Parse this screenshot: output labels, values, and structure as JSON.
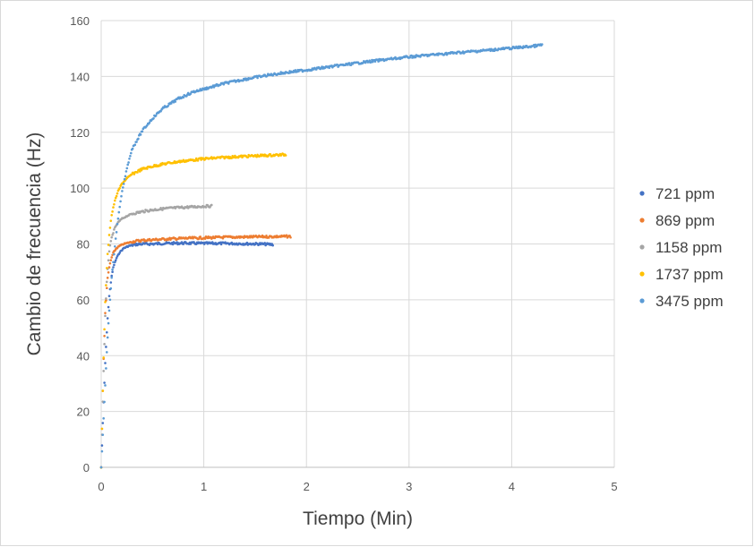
{
  "chart_data": {
    "type": "scatter",
    "title": "",
    "xlabel": "Tiempo (Min)",
    "ylabel": "Cambio de frecuencia (Hz)",
    "xlim": [
      0,
      5
    ],
    "ylim": [
      0,
      160
    ],
    "xticks": [
      0,
      1,
      2,
      3,
      4,
      5
    ],
    "yticks": [
      0,
      20,
      40,
      60,
      80,
      100,
      120,
      140,
      160
    ],
    "grid": true,
    "legend_position": "right",
    "series": [
      {
        "name": "721 ppm",
        "color": "#4472C4",
        "x": [
          0,
          0.02,
          0.04,
          0.06,
          0.08,
          0.1,
          0.12,
          0.15,
          0.18,
          0.22,
          0.27,
          0.33,
          0.4,
          0.5,
          0.6,
          0.8,
          1.0,
          1.2,
          1.4,
          1.55,
          1.68
        ],
        "y": [
          0,
          20,
          38,
          52,
          62,
          68,
          72,
          75,
          77,
          78.5,
          79.3,
          79.8,
          80,
          80,
          80.2,
          80.3,
          80.2,
          80.2,
          80.1,
          80.0,
          79.8
        ]
      },
      {
        "name": "869 ppm",
        "color": "#ED7D31",
        "x": [
          0,
          0.02,
          0.04,
          0.06,
          0.08,
          0.1,
          0.12,
          0.15,
          0.18,
          0.22,
          0.27,
          0.33,
          0.4,
          0.5,
          0.65,
          0.8,
          1.0,
          1.2,
          1.4,
          1.6,
          1.85
        ],
        "y": [
          0,
          35,
          56,
          67,
          72,
          75,
          77,
          78.5,
          79.3,
          80,
          80.5,
          81,
          81.3,
          81.5,
          81.8,
          82,
          82.2,
          82.4,
          82.5,
          82.6,
          82.7
        ]
      },
      {
        "name": "1158 ppm",
        "color": "#A5A5A5",
        "x": [
          0,
          0.02,
          0.04,
          0.06,
          0.08,
          0.1,
          0.13,
          0.16,
          0.2,
          0.25,
          0.3,
          0.4,
          0.5,
          0.6,
          0.7,
          0.8,
          0.9,
          1.0,
          1.08
        ],
        "y": [
          0,
          30,
          55,
          70,
          78,
          82,
          85.5,
          87.5,
          89,
          90,
          90.8,
          91.6,
          92.2,
          92.6,
          92.9,
          93.1,
          93.3,
          93.5,
          93.6
        ]
      },
      {
        "name": "1737 ppm",
        "color": "#FFC000",
        "x": [
          0,
          0.02,
          0.04,
          0.06,
          0.08,
          0.1,
          0.13,
          0.16,
          0.2,
          0.25,
          0.3,
          0.4,
          0.5,
          0.6,
          0.7,
          0.8,
          1.0,
          1.2,
          1.4,
          1.6,
          1.8
        ],
        "y": [
          0,
          35,
          60,
          75,
          84,
          90,
          95,
          98.5,
          101.5,
          103.5,
          105,
          106.8,
          107.8,
          108.6,
          109.2,
          109.7,
          110.5,
          111.0,
          111.4,
          111.7,
          112.0
        ]
      },
      {
        "name": "3475 ppm",
        "color": "#5B9BD5",
        "x": [
          0,
          0.02,
          0.04,
          0.06,
          0.08,
          0.1,
          0.13,
          0.16,
          0.2,
          0.25,
          0.3,
          0.4,
          0.5,
          0.6,
          0.75,
          0.9,
          1.0,
          1.2,
          1.4,
          1.6,
          1.8,
          2.0,
          2.3,
          2.6,
          3.0,
          3.4,
          3.8,
          4.2,
          4.3
        ],
        "y": [
          0,
          15,
          30,
          45,
          57,
          67,
          78,
          88,
          98,
          107,
          114,
          120.5,
          125,
          128.5,
          132,
          134.5,
          135.5,
          137.5,
          139,
          140.3,
          141.4,
          142.3,
          143.8,
          145.3,
          147,
          148.3,
          149.5,
          150.8,
          151.3
        ]
      }
    ]
  }
}
